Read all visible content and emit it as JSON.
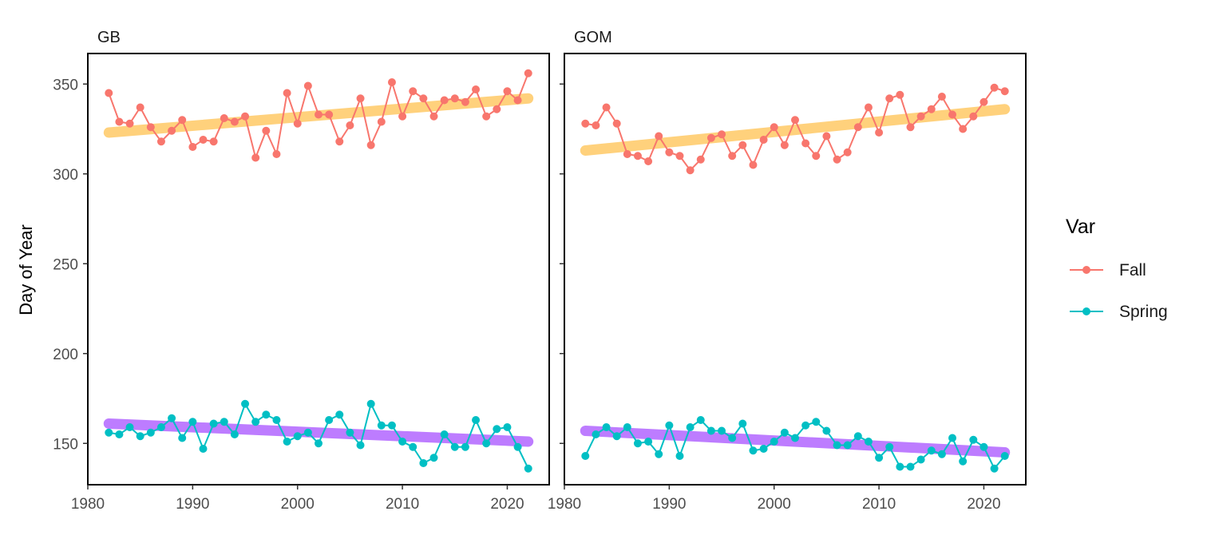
{
  "chart_data": {
    "type": "line",
    "ylabel": "Day of Year",
    "xlim": [
      1980,
      2024
    ],
    "ylim": [
      127,
      367
    ],
    "x_ticks": [
      1980,
      1990,
      2000,
      2010,
      2020
    ],
    "y_ticks": [
      150,
      200,
      250,
      300,
      350
    ],
    "grid": false,
    "legend": {
      "title": "Var",
      "position": "right",
      "entries": [
        {
          "name": "Fall",
          "color": "#F8766D"
        },
        {
          "name": "Spring",
          "color": "#00BFC4"
        }
      ]
    },
    "trend_colors": {
      "Fall": "#FFC966",
      "Spring": "#B266FF"
    },
    "x": [
      1982,
      1983,
      1984,
      1985,
      1986,
      1987,
      1988,
      1989,
      1990,
      1991,
      1992,
      1993,
      1994,
      1995,
      1996,
      1997,
      1998,
      1999,
      2000,
      2001,
      2002,
      2003,
      2004,
      2005,
      2006,
      2007,
      2008,
      2009,
      2010,
      2011,
      2012,
      2013,
      2014,
      2015,
      2016,
      2017,
      2018,
      2019,
      2020,
      2021,
      2022
    ],
    "panels": [
      {
        "name": "GB",
        "series": [
          {
            "name": "Fall",
            "values": [
              345,
              329,
              328,
              337,
              326,
              318,
              324,
              330,
              315,
              319,
              318,
              331,
              329,
              332,
              309,
              324,
              311,
              345,
              328,
              349,
              333,
              333,
              318,
              327,
              342,
              316,
              329,
              351,
              332,
              346,
              342,
              332,
              341,
              342,
              340,
              347,
              332,
              336,
              346,
              341,
              356
            ]
          },
          {
            "name": "Spring",
            "values": [
              156,
              155,
              159,
              154,
              156,
              159,
              164,
              153,
              162,
              147,
              161,
              162,
              155,
              172,
              162,
              166,
              163,
              151,
              154,
              156,
              150,
              163,
              166,
              156,
              149,
              172,
              160,
              160,
              151,
              148,
              139,
              142,
              155,
              148,
              148,
              163,
              150,
              158,
              159,
              148,
              136
            ]
          }
        ],
        "trends": [
          {
            "name": "Fall",
            "start": [
              1982,
              323
            ],
            "end": [
              2022,
              342
            ]
          },
          {
            "name": "Spring",
            "start": [
              1982,
              161
            ],
            "end": [
              2022,
              151
            ]
          }
        ]
      },
      {
        "name": "GOM",
        "series": [
          {
            "name": "Fall",
            "values": [
              328,
              327,
              337,
              328,
              311,
              310,
              307,
              321,
              312,
              310,
              302,
              308,
              320,
              322,
              310,
              316,
              305,
              319,
              326,
              316,
              330,
              317,
              310,
              321,
              308,
              312,
              326,
              337,
              323,
              342,
              344,
              326,
              332,
              336,
              343,
              333,
              325,
              332,
              340,
              348,
              346
            ]
          },
          {
            "name": "Spring",
            "values": [
              143,
              155,
              159,
              154,
              159,
              150,
              151,
              144,
              160,
              143,
              159,
              163,
              157,
              157,
              153,
              161,
              146,
              147,
              151,
              156,
              153,
              160,
              162,
              157,
              149,
              149,
              154,
              151,
              142,
              148,
              137,
              137,
              141,
              146,
              144,
              153,
              140,
              152,
              148,
              136,
              143
            ]
          }
        ],
        "trends": [
          {
            "name": "Fall",
            "start": [
              1982,
              313
            ],
            "end": [
              2022,
              336
            ]
          },
          {
            "name": "Spring",
            "start": [
              1982,
              157
            ],
            "end": [
              2022,
              145
            ]
          }
        ]
      }
    ]
  }
}
